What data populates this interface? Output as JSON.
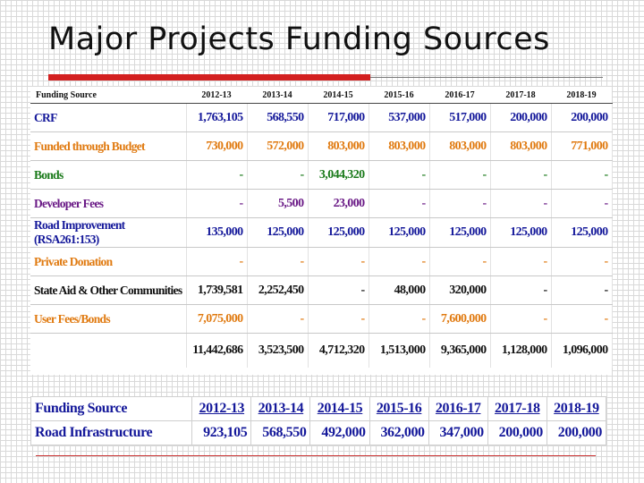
{
  "title": "Major Projects Funding Sources",
  "colors": {
    "title_underline": "#d32020",
    "navy": "#14189a",
    "green": "#1a7a1a",
    "orange": "#e07a10",
    "purple": "#6a1a86",
    "black": "#111111"
  },
  "main_table": {
    "header": {
      "label": "Funding Source",
      "years": [
        "2012-13",
        "2013-14",
        "2014-15",
        "2015-16",
        "2016-17",
        "2017-18",
        "2018-19"
      ]
    },
    "rows": [
      {
        "label": "CRF",
        "color": "#14189a",
        "values": [
          "1,763,105",
          "568,550",
          "717,000",
          "537,000",
          "517,000",
          "200,000",
          "200,000"
        ]
      },
      {
        "label": "Funded through Budget",
        "color": "#e07a10",
        "values": [
          "730,000",
          "572,000",
          "803,000",
          "803,000",
          "803,000",
          "803,000",
          "771,000"
        ]
      },
      {
        "label": "Bonds",
        "color": "#1a7a1a",
        "values": [
          "-",
          "-",
          "3,044,320",
          "-",
          "-",
          "-",
          "-"
        ]
      },
      {
        "label": "Developer Fees",
        "color": "#6a1a86",
        "values": [
          "-",
          "5,500",
          "23,000",
          "-",
          "-",
          "-",
          "-"
        ]
      },
      {
        "label": "Road Improvement (RSA261:153)",
        "color": "#14189a",
        "values": [
          "135,000",
          "125,000",
          "125,000",
          "125,000",
          "125,000",
          "125,000",
          "125,000"
        ]
      },
      {
        "label": "Private Donation",
        "color": "#e07a10",
        "values": [
          "-",
          "-",
          "-",
          "-",
          "-",
          "-",
          "-"
        ]
      },
      {
        "label": "State Aid & Other Communities",
        "color": "#111111",
        "values": [
          "1,739,581",
          "2,252,450",
          "-",
          "48,000",
          "320,000",
          "-",
          "-"
        ]
      },
      {
        "label": "User Fees/Bonds",
        "color": "#e07a10",
        "values": [
          "7,075,000",
          "-",
          "-",
          "-",
          "7,600,000",
          "-",
          "-"
        ]
      }
    ],
    "totals": {
      "color": "#111111",
      "values": [
        "11,442,686",
        "3,523,500",
        "4,712,320",
        "1,513,000",
        "9,365,000",
        "1,128,000",
        "1,096,000"
      ]
    }
  },
  "road_table": {
    "header": {
      "label": "Funding Source",
      "years": [
        "2012-13",
        "2013-14",
        "2014-15",
        "2015-16",
        "2016-17",
        "2017-18",
        "2018-19"
      ]
    },
    "row": {
      "label": "Road Infrastructure",
      "values": [
        "923,105",
        "568,550",
        "492,000",
        "362,000",
        "347,000",
        "200,000",
        "200,000"
      ]
    }
  }
}
